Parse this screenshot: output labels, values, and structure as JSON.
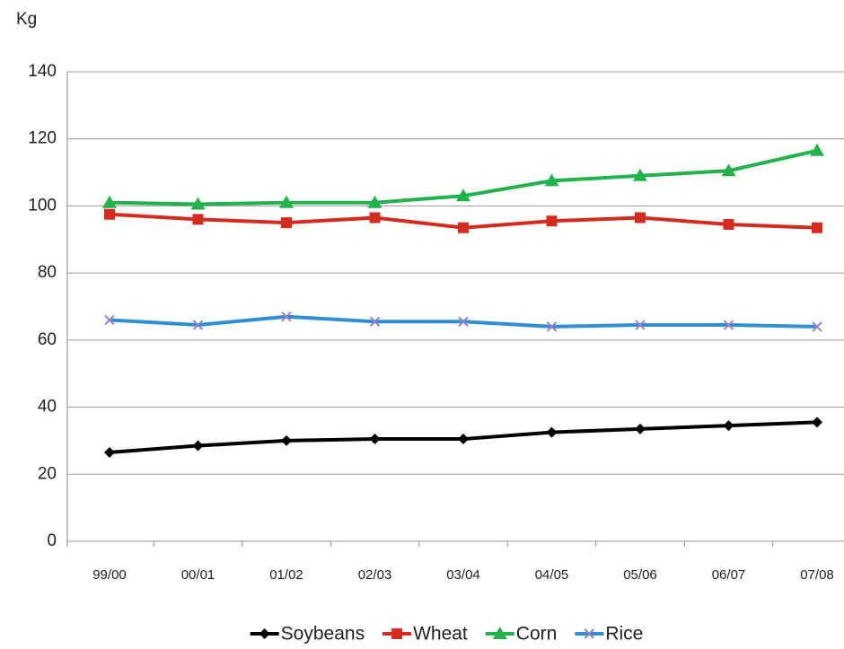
{
  "chart_data": {
    "type": "line",
    "y_label": "Kg",
    "categories": [
      "99/00",
      "00/01",
      "01/02",
      "02/03",
      "03/04",
      "04/05",
      "05/06",
      "06/07",
      "07/08"
    ],
    "series": [
      {
        "name": "Soybeans",
        "color": "#000000",
        "marker": "diamond",
        "values": [
          26.5,
          28.5,
          30,
          30.5,
          30.5,
          32.5,
          33.5,
          34.5,
          35.5
        ]
      },
      {
        "name": "Wheat",
        "color": "#d42a1f",
        "marker": "square",
        "values": [
          97.5,
          96,
          95,
          96.5,
          93.5,
          95.5,
          96.5,
          94.5,
          93.5
        ]
      },
      {
        "name": "Corn",
        "color": "#22b24c",
        "marker": "triangle",
        "values": [
          101,
          100.5,
          101,
          101,
          103,
          107.5,
          109,
          110.5,
          116.5
        ]
      },
      {
        "name": "Rice",
        "color": "#2f8fd6",
        "marker_color": "#9a7fc4",
        "marker": "x",
        "values": [
          66,
          64.5,
          67,
          65.5,
          65.5,
          64,
          64.5,
          64.5,
          64
        ]
      }
    ],
    "ylim": [
      0,
      140
    ],
    "yticks": [
      0,
      20,
      40,
      60,
      80,
      100,
      120,
      140
    ],
    "grid": true,
    "legend": "bottom"
  }
}
